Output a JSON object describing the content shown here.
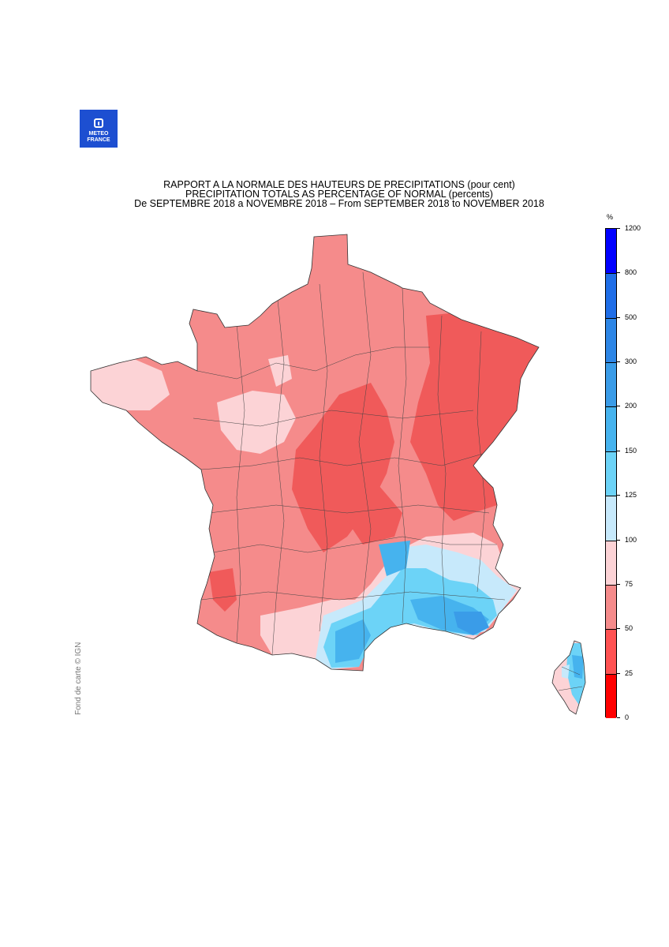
{
  "logo": {
    "line1": "METEO",
    "line2": "FRANCE",
    "color": "#1d4fd1"
  },
  "title": {
    "line1": "RAPPORT A LA NORMALE DES HAUTEURS DE PRECIPITATIONS (pour cent)",
    "line2": "PRECIPITATION TOTALS AS PERCENTAGE OF NORMAL (percents)",
    "line3": "De SEPTEMBRE 2018 a NOVEMBRE 2018 – From SEPTEMBER 2018 to NOVEMBER 2018"
  },
  "credit": "Fond de carte © IGN",
  "legend": {
    "unit": "%",
    "classes": [
      {
        "from": "0",
        "to": "25",
        "color": "#ff0000"
      },
      {
        "from": "25",
        "to": "50",
        "color": "#ff5252"
      },
      {
        "from": "50",
        "to": "75",
        "color": "#f58b8b"
      },
      {
        "from": "75",
        "to": "100",
        "color": "#fcd3d6"
      },
      {
        "from": "100",
        "to": "125",
        "color": "#c7e9fb"
      },
      {
        "from": "125",
        "to": "150",
        "color": "#6cd3f7"
      },
      {
        "from": "150",
        "to": "200",
        "color": "#46b3ee"
      },
      {
        "from": "200",
        "to": "300",
        "color": "#3a9ce8"
      },
      {
        "from": "300",
        "to": "500",
        "color": "#2d86e6"
      },
      {
        "from": "500",
        "to": "800",
        "color": "#1f6ee8"
      },
      {
        "from": "800",
        "to": "1200",
        "color": "#0000ff"
      }
    ],
    "labels": [
      "0",
      "25",
      "50",
      "75",
      "100",
      "125",
      "150",
      "200",
      "300",
      "500",
      "800",
      "1200"
    ]
  }
}
